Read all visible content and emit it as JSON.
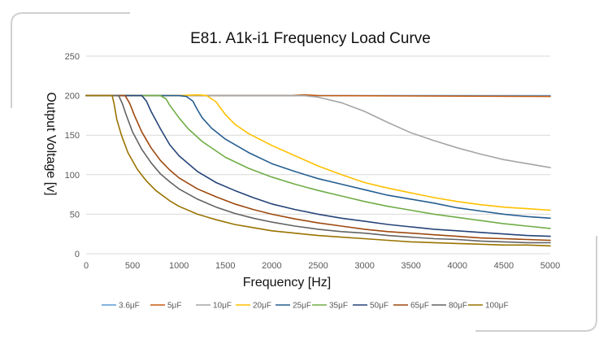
{
  "chart_data": {
    "type": "line",
    "title": "E81. A1k-i1 Frequency Load Curve",
    "xlabel": "Frequency [Hz]",
    "ylabel": "Output Voltage [v]",
    "xlim": [
      0,
      5000
    ],
    "ylim": [
      0,
      250
    ],
    "x_ticks": [
      0,
      500,
      1000,
      1500,
      2000,
      2500,
      3000,
      3500,
      4000,
      4500,
      5000
    ],
    "y_ticks": [
      0,
      50,
      100,
      150,
      200,
      250
    ],
    "grid": "horizontal",
    "legend_position": "bottom",
    "series": [
      {
        "name": "3.6μF",
        "color": "#5b9bd5",
        "points": [
          [
            0,
            200
          ],
          [
            5000,
            200
          ]
        ]
      },
      {
        "name": "5μF",
        "color": "#c55a11",
        "points": [
          [
            0,
            200
          ],
          [
            2200,
            200
          ],
          [
            2350,
            201
          ],
          [
            2500,
            200
          ],
          [
            5000,
            199
          ]
        ]
      },
      {
        "name": "10μF",
        "color": "#a5a5a5",
        "points": [
          [
            0,
            200
          ],
          [
            2350,
            200
          ],
          [
            2500,
            198
          ],
          [
            2750,
            191
          ],
          [
            3000,
            180
          ],
          [
            3250,
            166
          ],
          [
            3500,
            153
          ],
          [
            3750,
            143
          ],
          [
            4000,
            134
          ],
          [
            4250,
            126
          ],
          [
            4500,
            119
          ],
          [
            4750,
            114
          ],
          [
            5000,
            109
          ]
        ]
      },
      {
        "name": "20μF",
        "color": "#ffc000",
        "points": [
          [
            0,
            200
          ],
          [
            1000,
            200
          ],
          [
            1200,
            201
          ],
          [
            1300,
            200
          ],
          [
            1400,
            192
          ],
          [
            1500,
            176
          ],
          [
            1600,
            164
          ],
          [
            1750,
            152
          ],
          [
            2000,
            137
          ],
          [
            2250,
            124
          ],
          [
            2500,
            111
          ],
          [
            2750,
            100
          ],
          [
            3000,
            90
          ],
          [
            3250,
            83
          ],
          [
            3500,
            77
          ],
          [
            3750,
            71
          ],
          [
            4000,
            66
          ],
          [
            4250,
            62
          ],
          [
            4500,
            59
          ],
          [
            4750,
            57
          ],
          [
            5000,
            55
          ]
        ]
      },
      {
        "name": "25μF",
        "color": "#255e91",
        "points": [
          [
            0,
            200
          ],
          [
            1000,
            200
          ],
          [
            1080,
            199
          ],
          [
            1150,
            193
          ],
          [
            1200,
            182
          ],
          [
            1250,
            172
          ],
          [
            1350,
            159
          ],
          [
            1500,
            145
          ],
          [
            1750,
            128
          ],
          [
            2000,
            114
          ],
          [
            2250,
            104
          ],
          [
            2500,
            95
          ],
          [
            2750,
            88
          ],
          [
            3000,
            81
          ],
          [
            3250,
            74
          ],
          [
            3500,
            69
          ],
          [
            3750,
            64
          ],
          [
            4000,
            58
          ],
          [
            4250,
            54
          ],
          [
            4500,
            50
          ],
          [
            4750,
            47
          ],
          [
            5000,
            45
          ]
        ]
      },
      {
        "name": "35μF",
        "color": "#70ad47",
        "points": [
          [
            0,
            200
          ],
          [
            800,
            200
          ],
          [
            860,
            196
          ],
          [
            900,
            188
          ],
          [
            1000,
            172
          ],
          [
            1100,
            158
          ],
          [
            1250,
            142
          ],
          [
            1500,
            122
          ],
          [
            1750,
            108
          ],
          [
            2000,
            97
          ],
          [
            2250,
            88
          ],
          [
            2500,
            80
          ],
          [
            2750,
            73
          ],
          [
            3000,
            66
          ],
          [
            3250,
            60
          ],
          [
            3500,
            55
          ],
          [
            3750,
            50
          ],
          [
            4000,
            46
          ],
          [
            4250,
            42
          ],
          [
            4500,
            38
          ],
          [
            4750,
            35
          ],
          [
            5000,
            32
          ]
        ]
      },
      {
        "name": "50μF",
        "color": "#264478",
        "points": [
          [
            0,
            200
          ],
          [
            600,
            200
          ],
          [
            650,
            193
          ],
          [
            700,
            180
          ],
          [
            800,
            158
          ],
          [
            900,
            138
          ],
          [
            1000,
            124
          ],
          [
            1200,
            104
          ],
          [
            1400,
            90
          ],
          [
            1600,
            80
          ],
          [
            1800,
            71
          ],
          [
            2000,
            63
          ],
          [
            2250,
            56
          ],
          [
            2500,
            50
          ],
          [
            2750,
            45
          ],
          [
            3000,
            41
          ],
          [
            3250,
            37
          ],
          [
            3500,
            34
          ],
          [
            3750,
            31
          ],
          [
            4000,
            29
          ],
          [
            4250,
            27
          ],
          [
            4500,
            25
          ],
          [
            4750,
            23
          ],
          [
            5000,
            22
          ]
        ]
      },
      {
        "name": "65μF",
        "color": "#9e480e",
        "points": [
          [
            0,
            200
          ],
          [
            420,
            200
          ],
          [
            470,
            190
          ],
          [
            520,
            175
          ],
          [
            600,
            154
          ],
          [
            700,
            134
          ],
          [
            800,
            118
          ],
          [
            900,
            106
          ],
          [
            1000,
            96
          ],
          [
            1200,
            82
          ],
          [
            1400,
            72
          ],
          [
            1600,
            63
          ],
          [
            1800,
            56
          ],
          [
            2000,
            50
          ],
          [
            2250,
            44
          ],
          [
            2500,
            39
          ],
          [
            2750,
            35
          ],
          [
            3000,
            31
          ],
          [
            3250,
            28
          ],
          [
            3500,
            26
          ],
          [
            3750,
            24
          ],
          [
            4000,
            22
          ],
          [
            4250,
            20
          ],
          [
            4500,
            19
          ],
          [
            4750,
            18
          ],
          [
            5000,
            17
          ]
        ]
      },
      {
        "name": "80μF",
        "color": "#636363",
        "points": [
          [
            0,
            200
          ],
          [
            350,
            200
          ],
          [
            390,
            190
          ],
          [
            430,
            176
          ],
          [
            500,
            154
          ],
          [
            600,
            132
          ],
          [
            700,
            115
          ],
          [
            800,
            101
          ],
          [
            900,
            91
          ],
          [
            1000,
            82
          ],
          [
            1200,
            69
          ],
          [
            1400,
            59
          ],
          [
            1600,
            51
          ],
          [
            1800,
            45
          ],
          [
            2000,
            40
          ],
          [
            2250,
            35
          ],
          [
            2500,
            31
          ],
          [
            2750,
            28
          ],
          [
            3000,
            26
          ],
          [
            3250,
            23
          ],
          [
            3500,
            21
          ],
          [
            3750,
            19
          ],
          [
            4000,
            18
          ],
          [
            4250,
            16
          ],
          [
            4500,
            15
          ],
          [
            4750,
            14
          ],
          [
            5000,
            14
          ]
        ]
      },
      {
        "name": "100μF",
        "color": "#997300",
        "points": [
          [
            0,
            200
          ],
          [
            280,
            200
          ],
          [
            300,
            190
          ],
          [
            330,
            170
          ],
          [
            380,
            150
          ],
          [
            450,
            128
          ],
          [
            550,
            107
          ],
          [
            650,
            92
          ],
          [
            750,
            80
          ],
          [
            900,
            67
          ],
          [
            1000,
            60
          ],
          [
            1200,
            50
          ],
          [
            1400,
            43
          ],
          [
            1600,
            37
          ],
          [
            1800,
            33
          ],
          [
            2000,
            29
          ],
          [
            2250,
            26
          ],
          [
            2500,
            23
          ],
          [
            2750,
            21
          ],
          [
            3000,
            19
          ],
          [
            3250,
            17
          ],
          [
            3500,
            15
          ],
          [
            3750,
            14
          ],
          [
            4000,
            13
          ],
          [
            4250,
            12
          ],
          [
            4500,
            11
          ],
          [
            4750,
            11
          ],
          [
            5000,
            10
          ]
        ]
      }
    ]
  }
}
